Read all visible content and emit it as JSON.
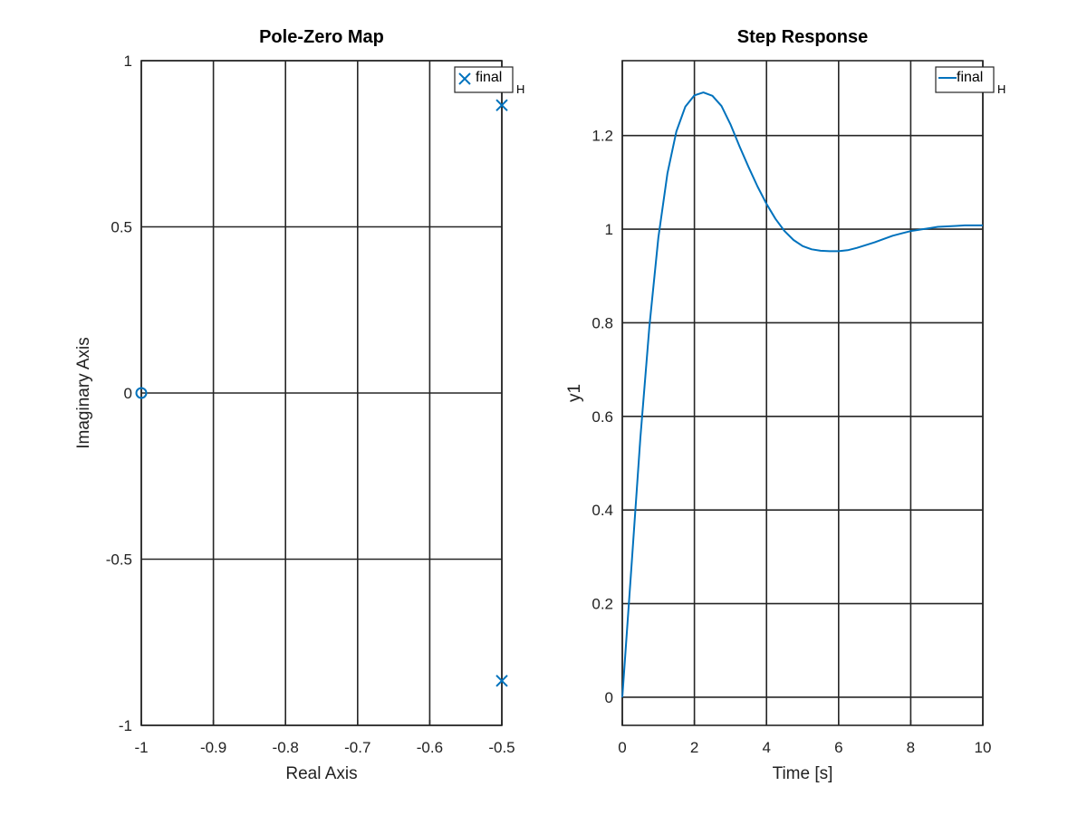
{
  "chart_data": [
    {
      "type": "scatter",
      "title": "Pole-Zero Map",
      "xlabel": "Real Axis",
      "ylabel": "Imaginary Axis",
      "xlim": [
        -1,
        -0.5
      ],
      "ylim": [
        -1,
        1
      ],
      "xticks": [
        -1,
        -0.9,
        -0.8,
        -0.7,
        -0.6,
        -0.5
      ],
      "xtick_labels": [
        "-1",
        "-0.9",
        "-0.8",
        "-0.7",
        "-0.6",
        "-0.5"
      ],
      "yticks": [
        -1,
        -0.5,
        0,
        0.5,
        1
      ],
      "ytick_labels": [
        "-1",
        "-0.5",
        "0",
        "0.5",
        "1"
      ],
      "grid": true,
      "legend": {
        "label": "final",
        "sub": "H",
        "position": "top-right"
      },
      "series": [
        {
          "name": "final",
          "color": "#0072BD",
          "poles": [
            {
              "x": -0.5,
              "y": 0.866
            },
            {
              "x": -0.5,
              "y": -0.866
            }
          ],
          "zeros": [
            {
              "x": -1,
              "y": 0
            }
          ]
        }
      ]
    },
    {
      "type": "line",
      "title": "Step Response",
      "xlabel": "Time [s]",
      "ylabel": "y1",
      "xlim": [
        0,
        10
      ],
      "ylim": [
        -0.06,
        1.36
      ],
      "xticks": [
        0,
        2,
        4,
        6,
        8,
        10
      ],
      "xtick_labels": [
        "0",
        "2",
        "4",
        "6",
        "8",
        "10"
      ],
      "yticks": [
        0,
        0.2,
        0.4,
        0.6,
        0.8,
        1,
        1.2
      ],
      "ytick_labels": [
        "0",
        "0.2",
        "0.4",
        "0.6",
        "0.8",
        "1",
        "1.2"
      ],
      "grid": true,
      "legend": {
        "label": "final",
        "sub": "H",
        "position": "top-right"
      },
      "series": [
        {
          "name": "final",
          "color": "#0072BD",
          "x": [
            0,
            0.25,
            0.5,
            0.75,
            1,
            1.25,
            1.5,
            1.75,
            2,
            2.25,
            2.5,
            2.75,
            3,
            3.25,
            3.5,
            3.75,
            4,
            4.25,
            4.5,
            4.75,
            5,
            5.25,
            5.5,
            5.75,
            6,
            6.25,
            6.5,
            6.75,
            7,
            7.25,
            7.5,
            7.75,
            8,
            8.25,
            8.5,
            8.75,
            9,
            9.25,
            9.5,
            9.75,
            10
          ],
          "y": [
            0,
            0.276,
            0.553,
            0.792,
            0.982,
            1.119,
            1.209,
            1.262,
            1.286,
            1.292,
            1.285,
            1.263,
            1.224,
            1.177,
            1.133,
            1.091,
            1.054,
            1.022,
            0.996,
            0.977,
            0.964,
            0.957,
            0.954,
            0.953,
            0.953,
            0.955,
            0.96,
            0.966,
            0.972,
            0.979,
            0.986,
            0.991,
            0.996,
            0.999,
            1.002,
            1.005,
            1.006,
            1.007,
            1.008,
            1.008,
            1.008
          ]
        }
      ]
    }
  ]
}
